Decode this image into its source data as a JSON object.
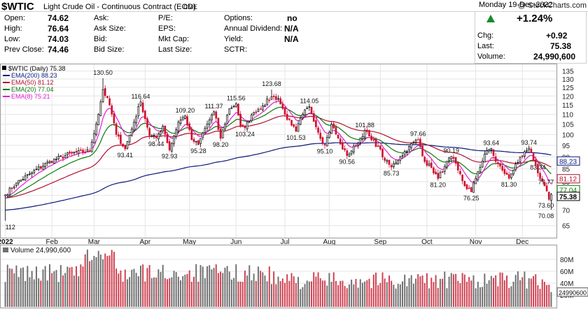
{
  "header": {
    "ticker": "$WTIC",
    "description": "Light Crude Oil - Continuous Contract (EOD)",
    "exchange": "CME",
    "brand": "@ StockCharts.com",
    "date": "Monday  19-Dec-2022",
    "change_pct": "+1.24%",
    "quote": {
      "open_label": "Open:",
      "open": "74.62",
      "high_label": "High:",
      "high": "76.64",
      "low_label": "Low:",
      "low": "74.03",
      "prev_label": "Prev Close:",
      "prev": "74.46",
      "ask_label": "Ask:",
      "ask_size_label": "Ask Size:",
      "bid_label": "Bid:",
      "bid_size_label": "Bid Size:",
      "pe_label": "P/E:",
      "eps_label": "EPS:",
      "mktcap_label": "Mkt Cap:",
      "lastsize_label": "Last Size:",
      "options_label": "Options:",
      "options": "no",
      "annual_div_label": "Annual Dividend:",
      "annual_div": "N/A",
      "yield_label": "Yield:",
      "yield": "N/A",
      "sctr_label": "SCTR:",
      "chg_label": "Chg:",
      "chg": "+0.92",
      "last_label": "Last:",
      "last": "75.38",
      "volume_label": "Volume:",
      "volume": "24,990,600"
    }
  },
  "colors": {
    "up_candle": "#000000",
    "down_candle": "#d01030",
    "ema200": "#0a1a7a",
    "ema50": "#b01030",
    "ema20": "#0a7a0a",
    "ema8": "#e020d0",
    "volume_up": "#707070",
    "volume_down": "#d04050",
    "grid": "#e4e4e4",
    "up_arrow": "#1a8a2a"
  },
  "chart_data": [
    {
      "type": "candlestick",
      "title": "$WTIC (Daily) 75.38",
      "price_scale": "log",
      "ylim": [
        62,
        138
      ],
      "y_ticks": [
        65,
        70,
        75,
        80,
        85,
        90,
        95,
        100,
        105,
        110,
        115,
        120,
        125,
        130,
        135
      ],
      "x_ticks": [
        "2022",
        "Feb",
        "Mar",
        "Apr",
        "May",
        "Jun",
        "Jul",
        "Aug",
        "Sep",
        "Oct",
        "Nov",
        "Dec"
      ],
      "x_tick_index": [
        0,
        21,
        40,
        63,
        83,
        104,
        126,
        146,
        169,
        190,
        212,
        233
      ],
      "n_sessions": 247,
      "close_path": [
        [
          0,
          75.2
        ],
        [
          5,
          79.5
        ],
        [
          12,
          83.5
        ],
        [
          20,
          88.0
        ],
        [
          30,
          91.5
        ],
        [
          38,
          92.5
        ],
        [
          42,
          110.0
        ],
        [
          44,
          123.7
        ],
        [
          47,
          115.0
        ],
        [
          50,
          100.0
        ],
        [
          54,
          93.41
        ],
        [
          58,
          106.0
        ],
        [
          61,
          116.64
        ],
        [
          65,
          99.5
        ],
        [
          68,
          98.44
        ],
        [
          71,
          104.0
        ],
        [
          74,
          92.93
        ],
        [
          78,
          106.0
        ],
        [
          81,
          109.2
        ],
        [
          84,
          97.5
        ],
        [
          87,
          95.28
        ],
        [
          90,
          103.0
        ],
        [
          94,
          111.37
        ],
        [
          97,
          98.2
        ],
        [
          101,
          113.0
        ],
        [
          104,
          115.56
        ],
        [
          106,
          104.0
        ],
        [
          108,
          103.24
        ],
        [
          112,
          111.0
        ],
        [
          116,
          114.5
        ],
        [
          120,
          119.5
        ],
        [
          123,
          118.5
        ],
        [
          126,
          110.0
        ],
        [
          129,
          104.5
        ],
        [
          131,
          101.53
        ],
        [
          134,
          110.0
        ],
        [
          137,
          114.05
        ],
        [
          141,
          101.0
        ],
        [
          144,
          95.1
        ],
        [
          147,
          105.0
        ],
        [
          151,
          95.5
        ],
        [
          154,
          90.56
        ],
        [
          158,
          95.0
        ],
        [
          162,
          101.88
        ],
        [
          165,
          97.5
        ],
        [
          168,
          94.5
        ],
        [
          171,
          88.5
        ],
        [
          174,
          85.73
        ],
        [
          178,
          90.0
        ],
        [
          182,
          94.5
        ],
        [
          186,
          97.66
        ],
        [
          189,
          88.0
        ],
        [
          192,
          85.5
        ],
        [
          195,
          81.2
        ],
        [
          198,
          86.0
        ],
        [
          201,
          90.19
        ],
        [
          204,
          84.5
        ],
        [
          207,
          78.5
        ],
        [
          210,
          76.25
        ],
        [
          213,
          84.0
        ],
        [
          217,
          92.6
        ],
        [
          219,
          93.64
        ],
        [
          221,
          88.0
        ],
        [
          224,
          84.5
        ],
        [
          227,
          81.3
        ],
        [
          230,
          87.0
        ],
        [
          233,
          90.0
        ],
        [
          236,
          93.74
        ],
        [
          238,
          88.5
        ],
        [
          240,
          83.34
        ],
        [
          242,
          80.0
        ],
        [
          244,
          76.5
        ],
        [
          245,
          73.6
        ],
        [
          246,
          75.38
        ]
      ],
      "labels": [
        {
          "text": "130.50",
          "i": 44,
          "v": 130.5,
          "pos": "above"
        },
        {
          "text": "116.64",
          "i": 61,
          "v": 116.64,
          "pos": "above"
        },
        {
          "text": "93.41",
          "i": 54,
          "v": 93.41,
          "pos": "below"
        },
        {
          "text": "98.44",
          "i": 68,
          "v": 98.44,
          "pos": "below"
        },
        {
          "text": "109.20",
          "i": 81,
          "v": 109.2,
          "pos": "above"
        },
        {
          "text": "92.93",
          "i": 74,
          "v": 92.93,
          "pos": "below"
        },
        {
          "text": "111.37",
          "i": 94,
          "v": 111.37,
          "pos": "above"
        },
        {
          "text": "95.28",
          "i": 87,
          "v": 95.28,
          "pos": "below"
        },
        {
          "text": "115.56",
          "i": 104,
          "v": 115.56,
          "pos": "above"
        },
        {
          "text": "98.20",
          "i": 97,
          "v": 98.2,
          "pos": "below"
        },
        {
          "text": "103.24",
          "i": 108,
          "v": 103.24,
          "pos": "below"
        },
        {
          "text": "123.68",
          "i": 120,
          "v": 123.68,
          "pos": "above"
        },
        {
          "text": "114.05",
          "i": 137,
          "v": 114.05,
          "pos": "above"
        },
        {
          "text": "101.53",
          "i": 131,
          "v": 101.53,
          "pos": "below"
        },
        {
          "text": "95.10",
          "i": 144,
          "v": 95.1,
          "pos": "below"
        },
        {
          "text": "101.88",
          "i": 162,
          "v": 101.88,
          "pos": "above"
        },
        {
          "text": "90.56",
          "i": 154,
          "v": 90.56,
          "pos": "below"
        },
        {
          "text": "97.66",
          "i": 186,
          "v": 97.66,
          "pos": "above"
        },
        {
          "text": "85.73",
          "i": 174,
          "v": 85.73,
          "pos": "below"
        },
        {
          "text": "90.19",
          "i": 201,
          "v": 90.19,
          "pos": "above"
        },
        {
          "text": "81.20",
          "i": 195,
          "v": 81.2,
          "pos": "below"
        },
        {
          "text": "93.64",
          "i": 219,
          "v": 93.64,
          "pos": "above"
        },
        {
          "text": "76.25",
          "i": 210,
          "v": 76.25,
          "pos": "below"
        },
        {
          "text": "81.30",
          "i": 227,
          "v": 81.3,
          "pos": "below"
        },
        {
          "text": "93.74",
          "i": 236,
          "v": 93.74,
          "pos": "above"
        },
        {
          "text": "83.34",
          "i": 240,
          "v": 83.34,
          "pos": "above"
        },
        {
          "text": "77.77",
          "i": 244,
          "v": 77.77,
          "pos": "above"
        },
        {
          "text": "73.60",
          "i": 245,
          "v": 73.6,
          "pos": "below"
        },
        {
          "text": "70.08",
          "i": 246,
          "v": 70.08,
          "pos": "below"
        },
        {
          "text": "112",
          "i": 0,
          "v": 66.5,
          "pos": "below"
        }
      ],
      "legend": [
        {
          "name": "$WTIC (Daily) 75.38",
          "color": "#000000"
        },
        {
          "name": "EMA(200) 88.23",
          "color": "#0a1a7a"
        },
        {
          "name": "EMA(50) 81.12",
          "color": "#b01030"
        },
        {
          "name": "EMA(20) 77.04",
          "color": "#0a7a0a"
        },
        {
          "name": "EMA(8) 75.21",
          "color": "#e020d0"
        }
      ],
      "right_tags": [
        {
          "text": "88.23",
          "v": 88.23,
          "color": "#0a1a7a"
        },
        {
          "text": "81.12",
          "v": 81.12,
          "color": "#b01030"
        },
        {
          "text": "77.04",
          "v": 77.04,
          "color": "#0a7a0a"
        },
        {
          "text": "75.38",
          "v": 75.38,
          "color": "#000000"
        }
      ]
    },
    {
      "type": "bar",
      "title": "Volume 24,990,600",
      "ylim": [
        0,
        100
      ],
      "y_ticks": [
        20,
        40,
        60,
        80
      ],
      "y_tick_labels": [
        "20M",
        "40M",
        "60M",
        "80M"
      ],
      "last_value_tag": "24990600",
      "last_value": 25.0
    }
  ]
}
